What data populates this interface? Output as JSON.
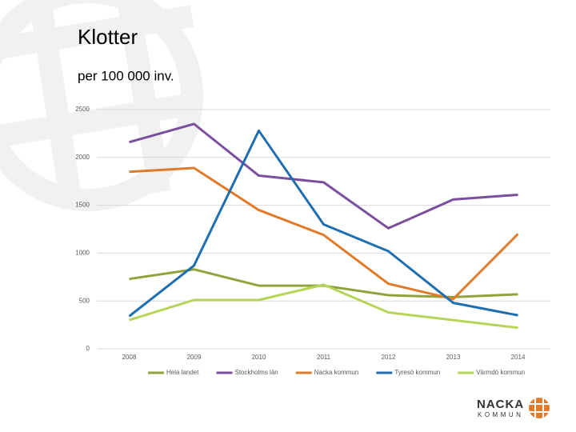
{
  "chart_data": {
    "type": "line",
    "title": "Klotter",
    "subtitle": "per 100 000 inv.",
    "categories": [
      "2008",
      "2009",
      "2010",
      "2011",
      "2012",
      "2013",
      "2014"
    ],
    "series": [
      {
        "name": "Hela landet",
        "color": "#8fa33a",
        "values": [
          730,
          830,
          660,
          660,
          560,
          540,
          570
        ]
      },
      {
        "name": "Stockholms län",
        "color": "#7b4f9e",
        "values": [
          2160,
          2350,
          1810,
          1740,
          1260,
          1560,
          1610
        ]
      },
      {
        "name": "Nacka kommun",
        "color": "#e07b2a",
        "values": [
          1850,
          1890,
          1450,
          1190,
          680,
          520,
          1200
        ]
      },
      {
        "name": "Tyresö kommun",
        "color": "#1f6fb0",
        "values": [
          340,
          870,
          2280,
          1300,
          1020,
          480,
          350
        ]
      },
      {
        "name": "Värmdö kommun",
        "color": "#b7d458",
        "values": [
          300,
          510,
          510,
          670,
          380,
          300,
          220
        ]
      }
    ],
    "ylim": [
      0,
      2500
    ],
    "yticks": [
      0,
      500,
      1000,
      1500,
      2000,
      2500
    ],
    "grid": true,
    "legend": "bottom"
  },
  "logo": {
    "name": "NACKA",
    "sub": "KOMMUN"
  }
}
